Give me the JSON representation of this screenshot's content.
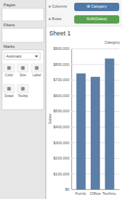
{
  "chart_data": {
    "type": "bar",
    "title": "Sheet 1",
    "ylabel": "Sales",
    "categories": [
      "Furnit.",
      "Office",
      "Techno."
    ],
    "values": [
      741000,
      719000,
      836000
    ],
    "color": "#5b7fa6",
    "ylim": [
      0,
      900000
    ],
    "yticks": [
      {
        "value": 0,
        "label": "$0"
      },
      {
        "value": 100000,
        "label": "$100,000"
      },
      {
        "value": 200000,
        "label": "$200,000"
      },
      {
        "value": 300000,
        "label": "$300,000"
      },
      {
        "value": 400000,
        "label": "$400,000"
      },
      {
        "value": 500000,
        "label": "$500,000"
      },
      {
        "value": 600000,
        "label": "$600,000"
      },
      {
        "value": 700000,
        "label": "$700,000"
      },
      {
        "value": 800000,
        "label": "$800,000"
      },
      {
        "value": 900000,
        "label": "$900,000"
      }
    ],
    "grid": true,
    "annotations": [
      "Pages",
      "Filters",
      "Marks",
      "Automatic",
      "Color",
      "Size",
      "Label",
      "Detail",
      "Tooltip",
      "≡ Columns",
      "⊕ Category",
      "≡ Rows",
      "SUM(Sales)",
      "Category"
    ]
  }
}
